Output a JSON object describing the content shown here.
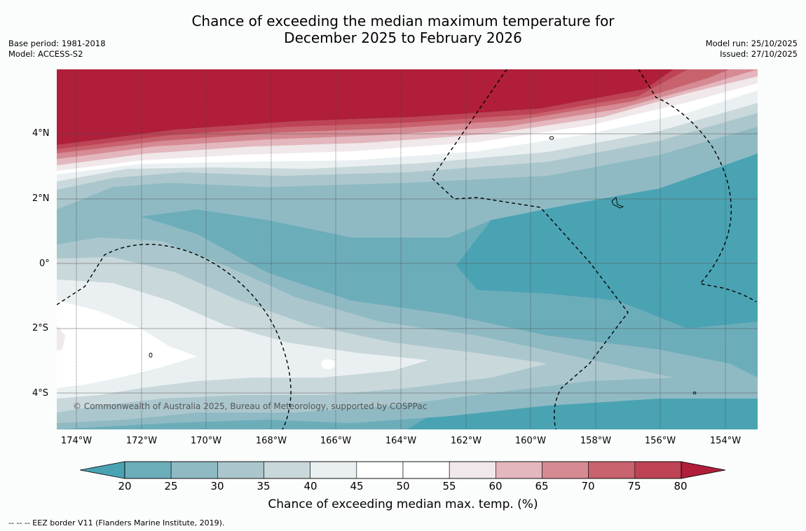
{
  "title": {
    "line1": "Chance of exceeding the median maximum temperature for",
    "line2": "December 2025 to February 2026"
  },
  "meta_left": {
    "base_period": "Base period: 1981-2018",
    "model": "Model: ACCESS-S2"
  },
  "meta_right": {
    "model_run": "Model run: 25/10/2025",
    "issued": "Issued: 27/10/2025"
  },
  "map": {
    "lat_labels": [
      "4°N",
      "2°N",
      "0°",
      "2°S",
      "4°S"
    ],
    "lon_labels": [
      "174°W",
      "172°W",
      "170°W",
      "168°W",
      "166°W",
      "164°W",
      "162°W",
      "160°W",
      "158°W",
      "156°W",
      "154°W"
    ],
    "copyright": "© Commonwealth of Australia 2025, Bureau of Meteorology, supported by COSPPac"
  },
  "colorbar": {
    "ticks": [
      "20",
      "25",
      "30",
      "35",
      "40",
      "45",
      "50",
      "55",
      "60",
      "65",
      "70",
      "75",
      "80"
    ],
    "colors": [
      "#4aa3b3",
      "#6cadba",
      "#8fbac4",
      "#abc7cd",
      "#c9d8db",
      "#eaf0f2",
      "#ffffff",
      "#ffffff",
      "#f0e8ea",
      "#e3b7bd",
      "#d68a93",
      "#c8626d",
      "#bd4355",
      "#b01e3a"
    ],
    "label": "Chance of exceeding median max. temp. (%)"
  },
  "footer": "--  --  -- EEZ border V11 (Flanders Marine Institute, 2019)."
}
